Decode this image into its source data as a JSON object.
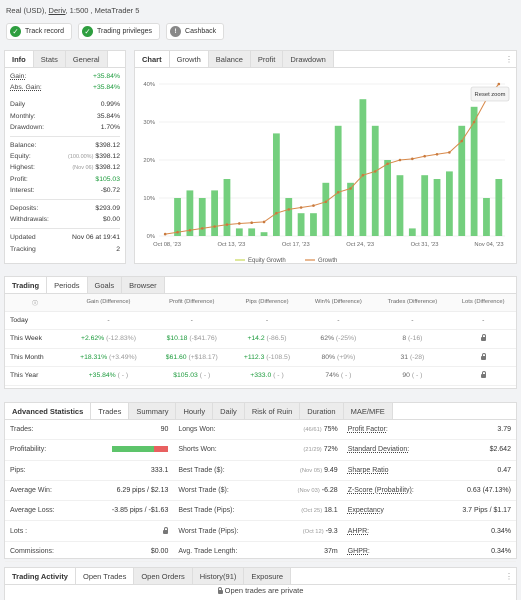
{
  "account": {
    "title_prefix": "Real (USD),",
    "broker": "Deriv",
    "title_suffix": ", 1:500 , MetaTrader 5"
  },
  "badges": [
    {
      "label": "Track record"
    },
    {
      "label": "Trading privileges"
    },
    {
      "label": "Cashback"
    }
  ],
  "info": {
    "tabs": [
      "Info",
      "Stats",
      "General"
    ],
    "rows": [
      {
        "label": "Gain:",
        "value": "+35.84%",
        "color": "green",
        "sub": ""
      },
      {
        "label": "Abs. Gain:",
        "value": "+35.84%",
        "color": "green",
        "sub": ""
      },
      {
        "label": "Daily",
        "value": "0.99%",
        "color": "",
        "sub": ""
      },
      {
        "label": "Monthly:",
        "value": "35.84%",
        "color": "",
        "sub": ""
      },
      {
        "label": "Drawdown:",
        "value": "1.70%",
        "color": "",
        "sub": ""
      },
      {
        "label": "Balance:",
        "value": "$398.12",
        "color": "",
        "sub": ""
      },
      {
        "label": "Equity:",
        "value": "$398.12",
        "color": "",
        "sub": "(100.00%)"
      },
      {
        "label": "Highest:",
        "value": "$398.12",
        "color": "",
        "sub": "(Nov 06)"
      },
      {
        "label": "Profit:",
        "value": "$105.03",
        "color": "green",
        "sub": ""
      },
      {
        "label": "Interest:",
        "value": "-$0.72",
        "color": "",
        "sub": ""
      },
      {
        "label": "Deposits:",
        "value": "$293.09",
        "color": "",
        "sub": ""
      },
      {
        "label": "Withdrawals:",
        "value": "$0.00",
        "color": "",
        "sub": ""
      },
      {
        "label": "Updated",
        "value": "Nov 06 at 19:41",
        "color": "",
        "sub": ""
      },
      {
        "label": "Tracking",
        "value": "2",
        "color": "",
        "sub": ""
      }
    ]
  },
  "chart_panel": {
    "tabs": [
      "Chart",
      "Growth",
      "Balance",
      "Profit",
      "Drawdown"
    ],
    "reset_zoom": "Reset zoom"
  },
  "chart_data": {
    "type": "bar",
    "ylabels": [
      "0%",
      "10%",
      "20%",
      "30%",
      "40%"
    ],
    "ylim": [
      0,
      40
    ],
    "xlabels": [
      "Oct 08, '23",
      "Oct 13, '23",
      "Oct 17, '23",
      "Oct 24, '23",
      "Oct 31, '23",
      "Nov 04, '23"
    ],
    "legend": [
      "Equity Growth",
      "Growth"
    ],
    "bar_values": [
      0,
      10,
      12,
      10,
      12,
      15,
      2,
      2,
      1,
      27,
      10,
      6,
      6,
      14,
      29,
      14,
      36,
      29,
      20,
      16,
      2,
      16,
      15,
      17,
      29,
      34,
      10,
      15
    ],
    "growth_line": [
      0.5,
      1.0,
      1.5,
      2.0,
      2.5,
      3.0,
      3.3,
      3.5,
      3.7,
      6.0,
      7.0,
      7.5,
      8.0,
      9.0,
      11.5,
      12.5,
      16.0,
      17.0,
      19.0,
      20.0,
      20.3,
      21.0,
      21.5,
      22.0,
      25.0,
      30.0,
      36.0,
      40.0
    ]
  },
  "trading": {
    "tabs": [
      "Trading",
      "Periods",
      "Goals",
      "Browser"
    ],
    "headers": [
      "Gain (Difference)",
      "Profit (Difference)",
      "Pips (Difference)",
      "Win% (Difference)",
      "Trades (Difference)",
      "Lots (Difference)"
    ],
    "rows": [
      {
        "period": "Today",
        "gain": "-",
        "gain_d": "",
        "profit": "-",
        "profit_d": "",
        "pips": "-",
        "pips_d": "",
        "win": "-",
        "win_d": "",
        "trades": "-",
        "trades_d": "",
        "lots": "-"
      },
      {
        "period": "This Week",
        "gain": "+2.62%",
        "gain_d": "(-12.83%)",
        "profit": "$10.18",
        "profit_d": "(-$41.76)",
        "pips": "+14.2",
        "pips_d": "(-86.5)",
        "win": "62%",
        "win_d": "(-25%)",
        "trades": "8",
        "trades_d": "(-16)",
        "lots": "lock"
      },
      {
        "period": "This Month",
        "gain": "+18.31%",
        "gain_d": "(+3.49%)",
        "profit": "$61.60",
        "profit_d": "(+$18.17)",
        "pips": "+112.3",
        "pips_d": "(-108.5)",
        "win": "80%",
        "win_d": "(+9%)",
        "trades": "31",
        "trades_d": "(-28)",
        "lots": "lock"
      },
      {
        "period": "This Year",
        "gain": "+35.84%",
        "gain_d": "( - )",
        "profit": "$105.03",
        "profit_d": "( - )",
        "pips": "+333.0",
        "pips_d": "( - )",
        "win": "74%",
        "win_d": "( - )",
        "trades": "90",
        "trades_d": "( - )",
        "lots": "lock"
      }
    ]
  },
  "advanced": {
    "tabs": [
      "Advanced Statistics",
      "Trades",
      "Summary",
      "Hourly",
      "Daily",
      "Risk of Ruin",
      "Duration",
      "MAE/MFE"
    ],
    "rows": [
      [
        {
          "label": "Trades:",
          "pre": "",
          "value": "90"
        },
        {
          "label": "Longs Won:",
          "pre": "(46/61)",
          "value": "75%"
        },
        {
          "label": "Profit Factor:",
          "pre": "",
          "value": "3.79"
        }
      ],
      [
        {
          "label": "Profitability:",
          "pre": "",
          "value": "",
          "bar_win": 0.74
        },
        {
          "label": "Shorts Won:",
          "pre": "(21/29)",
          "value": "72%"
        },
        {
          "label": "Standard Deviation:",
          "pre": "",
          "value": "$2.642"
        }
      ],
      [
        {
          "label": "Pips:",
          "pre": "",
          "value": "333.1"
        },
        {
          "label": "Best Trade ($):",
          "pre": "(Nov 05)",
          "value": "9.49"
        },
        {
          "label": "Sharpe Ratio",
          "pre": "",
          "value": "0.47"
        }
      ],
      [
        {
          "label": "Average Win:",
          "pre": "",
          "value": "6.29 pips / $2.13"
        },
        {
          "label": "Worst Trade ($):",
          "pre": "(Nov 03)",
          "value": "-6.28"
        },
        {
          "label": "Z-Score (Probability):",
          "pre": "",
          "value": "0.63 (47.13%)"
        }
      ],
      [
        {
          "label": "Average Loss:",
          "pre": "",
          "value": "-3.85 pips / -$1.63"
        },
        {
          "label": "Best Trade (Pips):",
          "pre": "(Oct 25)",
          "value": "18.1"
        },
        {
          "label": "Expectancy",
          "pre": "",
          "value": "3.7 Pips / $1.17"
        }
      ],
      [
        {
          "label": "Lots :",
          "pre": "",
          "value": "lock"
        },
        {
          "label": "Worst Trade (Pips):",
          "pre": "(Oct 12)",
          "value": "-9.3"
        },
        {
          "label": "AHPR:",
          "pre": "",
          "value": "0.34%"
        }
      ],
      [
        {
          "label": "Commissions:",
          "pre": "",
          "value": "$0.00"
        },
        {
          "label": "Avg. Trade Length:",
          "pre": "",
          "value": "37m"
        },
        {
          "label": "GHPR:",
          "pre": "",
          "value": "0.34%"
        }
      ]
    ]
  },
  "activity": {
    "tabs": [
      "Trading Activity",
      "Open Trades",
      "Open Orders",
      "History(91)",
      "Exposure"
    ],
    "private_text": "Open trades are private"
  }
}
